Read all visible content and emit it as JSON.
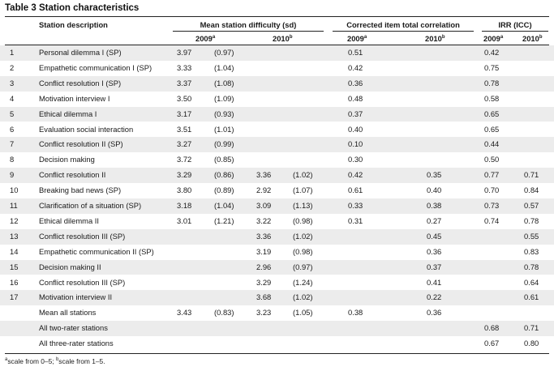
{
  "title": "Table 3 Station characteristics",
  "header": {
    "station_description": "Station description",
    "mean_difficulty": "Mean station difficulty (sd)",
    "corrected_item": "Corrected item total correlation",
    "irr": "IRR (ICC)",
    "y2009": "2009",
    "y2009_sup": "a",
    "y2010": "2010",
    "y2010_sup": "b"
  },
  "rows": [
    {
      "num": "1",
      "desc": "Personal dilemma I (SP)",
      "m09": "3.97",
      "sd09": "(0.97)",
      "m10": "",
      "sd10": "",
      "c09": "0.51",
      "c10": "",
      "i09": "0.42",
      "i10": ""
    },
    {
      "num": "2",
      "desc": "Empathetic communication I (SP)",
      "m09": "3.33",
      "sd09": "(1.04)",
      "m10": "",
      "sd10": "",
      "c09": "0.42",
      "c10": "",
      "i09": "0.75",
      "i10": ""
    },
    {
      "num": "3",
      "desc": "Conflict resolution I (SP)",
      "m09": "3.37",
      "sd09": "(1.08)",
      "m10": "",
      "sd10": "",
      "c09": "0.36",
      "c10": "",
      "i09": "0.78",
      "i10": ""
    },
    {
      "num": "4",
      "desc": "Motivation interview I",
      "m09": "3.50",
      "sd09": "(1.09)",
      "m10": "",
      "sd10": "",
      "c09": "0.48",
      "c10": "",
      "i09": "0.58",
      "i10": ""
    },
    {
      "num": "5",
      "desc": "Ethical dilemma I",
      "m09": "3.17",
      "sd09": "(0.93)",
      "m10": "",
      "sd10": "",
      "c09": "0.37",
      "c10": "",
      "i09": "0.65",
      "i10": ""
    },
    {
      "num": "6",
      "desc": "Evaluation social interaction",
      "m09": "3.51",
      "sd09": "(1.01)",
      "m10": "",
      "sd10": "",
      "c09": "0.40",
      "c10": "",
      "i09": "0.65",
      "i10": ""
    },
    {
      "num": "7",
      "desc": "Conflict resolution II (SP)",
      "m09": "3.27",
      "sd09": "(0.99)",
      "m10": "",
      "sd10": "",
      "c09": "0.10",
      "c10": "",
      "i09": "0.44",
      "i10": ""
    },
    {
      "num": "8",
      "desc": "Decision making",
      "m09": "3.72",
      "sd09": "(0.85)",
      "m10": "",
      "sd10": "",
      "c09": "0.30",
      "c10": "",
      "i09": "0.50",
      "i10": ""
    },
    {
      "num": "9",
      "desc": "Conflict resolution II",
      "m09": "3.29",
      "sd09": "(0.86)",
      "m10": "3.36",
      "sd10": "(1.02)",
      "c09": "0.42",
      "c10": "0.35",
      "i09": "0.77",
      "i10": "0.71"
    },
    {
      "num": "10",
      "desc": "Breaking bad news (SP)",
      "m09": "3.80",
      "sd09": "(0.89)",
      "m10": "2.92",
      "sd10": "(1.07)",
      "c09": "0.61",
      "c10": "0.40",
      "i09": "0.70",
      "i10": "0.84"
    },
    {
      "num": "11",
      "desc": "Clarification of a situation (SP)",
      "m09": "3.18",
      "sd09": "(1.04)",
      "m10": "3.09",
      "sd10": "(1.13)",
      "c09": "0.33",
      "c10": "0.38",
      "i09": "0.73",
      "i10": "0.57"
    },
    {
      "num": "12",
      "desc": "Ethical dilemma II",
      "m09": "3.01",
      "sd09": "(1.21)",
      "m10": "3.22",
      "sd10": "(0.98)",
      "c09": "0.31",
      "c10": "0.27",
      "i09": "0.74",
      "i10": "0.78"
    },
    {
      "num": "13",
      "desc": "Conflict resolution III (SP)",
      "m09": "",
      "sd09": "",
      "m10": "3.36",
      "sd10": "(1.02)",
      "c09": "",
      "c10": "0.45",
      "i09": "",
      "i10": "0.55"
    },
    {
      "num": "14",
      "desc": "Empathetic communication II (SP)",
      "m09": "",
      "sd09": "",
      "m10": "3.19",
      "sd10": "(0.98)",
      "c09": "",
      "c10": "0.36",
      "i09": "",
      "i10": "0.83"
    },
    {
      "num": "15",
      "desc": "Decision making II",
      "m09": "",
      "sd09": "",
      "m10": "2.96",
      "sd10": "(0.97)",
      "c09": "",
      "c10": "0.37",
      "i09": "",
      "i10": "0.78"
    },
    {
      "num": "16",
      "desc": "Conflict resolution III (SP)",
      "m09": "",
      "sd09": "",
      "m10": "3.29",
      "sd10": "(1.24)",
      "c09": "",
      "c10": "0.41",
      "i09": "",
      "i10": "0.64"
    },
    {
      "num": "17",
      "desc": "Motivation interview II",
      "m09": "",
      "sd09": "",
      "m10": "3.68",
      "sd10": "(1.02)",
      "c09": "",
      "c10": "0.22",
      "i09": "",
      "i10": "0.61"
    },
    {
      "num": "",
      "desc": "Mean all stations",
      "m09": "3.43",
      "sd09": "(0.83)",
      "m10": "3.23",
      "sd10": "(1.05)",
      "c09": "0.38",
      "c10": "0.36",
      "i09": "",
      "i10": ""
    },
    {
      "num": "",
      "desc": "All two-rater stations",
      "m09": "",
      "sd09": "",
      "m10": "",
      "sd10": "",
      "c09": "",
      "c10": "",
      "i09": "0.68",
      "i10": "0.71"
    },
    {
      "num": "",
      "desc": "All three-rater stations",
      "m09": "",
      "sd09": "",
      "m10": "",
      "sd10": "",
      "c09": "",
      "c10": "",
      "i09": "0.67",
      "i10": "0.80"
    }
  ],
  "footnote": {
    "a_mark": "a",
    "a_text": "scale from 0–5; ",
    "b_mark": "b",
    "b_text": "scale from 1–5."
  }
}
